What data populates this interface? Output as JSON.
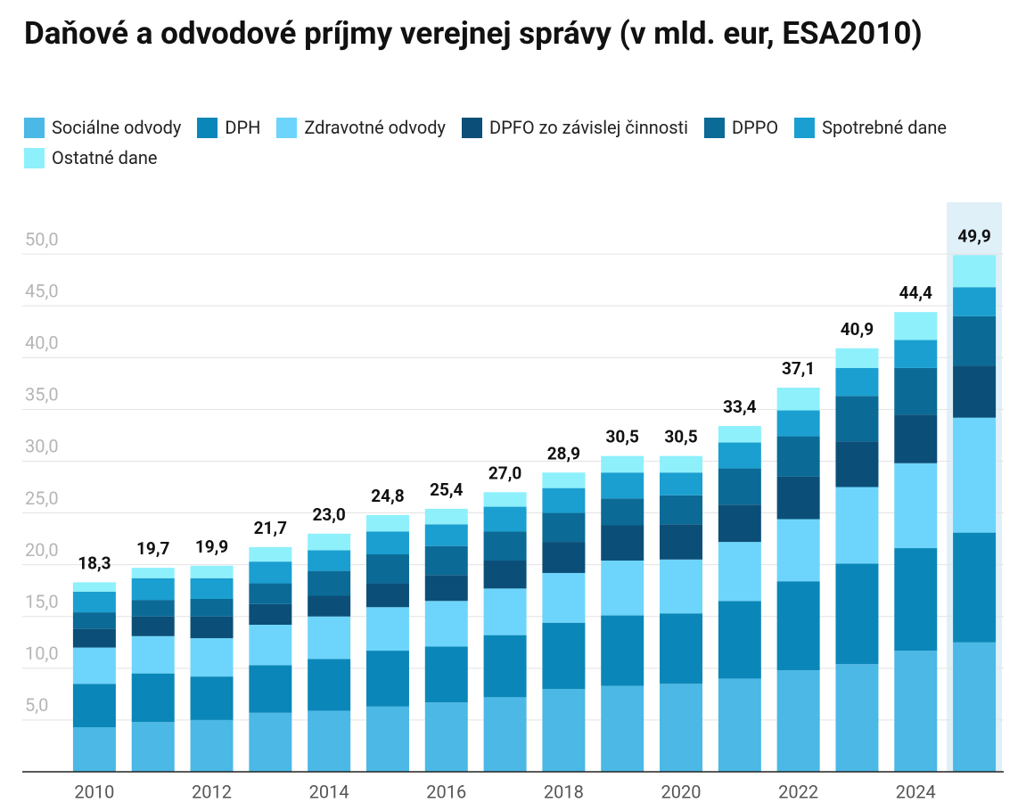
{
  "chart_data": {
    "type": "stacked-bar",
    "title": "Daňové a odvodové príjmy verejnej správy (v mld. eur, ESA2010)",
    "categories": [
      "2010",
      null,
      "2012",
      null,
      "2014",
      null,
      "2016",
      null,
      "2018",
      null,
      "2020",
      null,
      "2022",
      null,
      "2024",
      null
    ],
    "series": [
      {
        "name": "Sociálne odvody",
        "color": "#4bb8e6",
        "values": [
          4.3,
          4.8,
          5.0,
          5.7,
          5.9,
          6.3,
          6.7,
          7.2,
          8.0,
          8.3,
          8.5,
          9.0,
          9.8,
          10.4,
          11.7,
          12.5
        ]
      },
      {
        "name": "DPH",
        "color": "#0a87b8",
        "values": [
          4.2,
          4.7,
          4.2,
          4.6,
          5.0,
          5.4,
          5.4,
          6.0,
          6.4,
          6.8,
          6.8,
          7.5,
          8.6,
          9.7,
          9.9,
          10.6
        ]
      },
      {
        "name": "Zdravotné odvody",
        "color": "#6dd5fb",
        "values": [
          3.5,
          3.6,
          3.7,
          3.9,
          4.1,
          4.2,
          4.4,
          4.5,
          4.8,
          5.3,
          5.2,
          5.7,
          6.0,
          7.4,
          8.2,
          11.1
        ]
      },
      {
        "name": "DPFO zo závislej činnosti",
        "color": "#0b4f78",
        "values": [
          1.8,
          1.9,
          2.1,
          2.0,
          2.0,
          2.3,
          2.5,
          2.7,
          3.0,
          3.4,
          3.4,
          3.6,
          4.1,
          4.4,
          4.7,
          5.0
        ]
      },
      {
        "name": "DPPO",
        "color": "#0b6a96",
        "values": [
          1.6,
          1.6,
          1.7,
          2.0,
          2.4,
          2.8,
          2.8,
          2.8,
          2.8,
          2.6,
          2.8,
          3.5,
          3.9,
          4.4,
          4.5,
          4.8
        ]
      },
      {
        "name": "Spotrebné dane",
        "color": "#1a9fd0",
        "values": [
          2.0,
          2.1,
          2.0,
          2.1,
          2.0,
          2.2,
          2.1,
          2.4,
          2.4,
          2.5,
          2.2,
          2.5,
          2.5,
          2.7,
          2.7,
          2.8
        ]
      },
      {
        "name": "Ostatné dane",
        "color": "#8ef0fb",
        "values": [
          0.9,
          1.0,
          1.2,
          1.4,
          1.6,
          1.6,
          1.5,
          1.4,
          1.5,
          1.6,
          1.6,
          1.6,
          2.2,
          1.9,
          2.7,
          3.1
        ]
      }
    ],
    "totals": {
      "values": [
        18.3,
        19.7,
        19.9,
        21.7,
        23.0,
        24.8,
        25.4,
        27.0,
        28.9,
        30.5,
        30.5,
        33.4,
        37.1,
        40.9,
        44.4,
        49.9
      ],
      "value_labels": [
        "18,3",
        "19,7",
        "19,9",
        "21,7",
        "23,0",
        "24,8",
        "25,4",
        "27,0",
        "28,9",
        "30,5",
        "30,5",
        "33,4",
        "37,1",
        "40,9",
        "44,4",
        "49,9"
      ]
    },
    "ylim": [
      0,
      55
    ],
    "yticks": [
      {
        "value": 5,
        "label": "5,0"
      },
      {
        "value": 10,
        "label": "10,0"
      },
      {
        "value": 15,
        "label": "15,0"
      },
      {
        "value": 20,
        "label": "20,0"
      },
      {
        "value": 25,
        "label": "25,0"
      },
      {
        "value": 30,
        "label": "30,0"
      },
      {
        "value": 35,
        "label": "35,0"
      },
      {
        "value": 40,
        "label": "40,0"
      },
      {
        "value": 45,
        "label": "45,0"
      },
      {
        "value": 50,
        "label": "50,0"
      }
    ],
    "grid": true
  }
}
